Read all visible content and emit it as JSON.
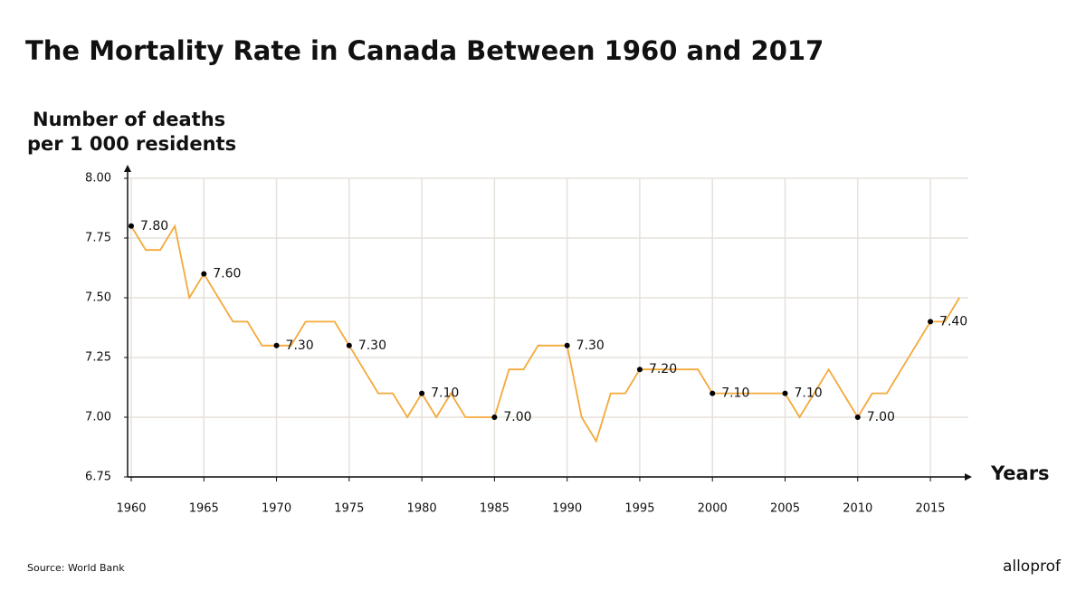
{
  "chart_data": {
    "type": "line",
    "title": "The Mortality Rate in Canada Between 1960 and 2017",
    "y_label": [
      "Number of deaths",
      "per 1 000 residents"
    ],
    "x_label": "Years",
    "source": "Source: World Bank",
    "logo": "alloprof",
    "x": [
      1960,
      1961,
      1962,
      1963,
      1964,
      1965,
      1966,
      1967,
      1968,
      1969,
      1970,
      1971,
      1972,
      1973,
      1974,
      1975,
      1976,
      1977,
      1978,
      1979,
      1980,
      1981,
      1982,
      1983,
      1984,
      1985,
      1986,
      1987,
      1988,
      1989,
      1990,
      1991,
      1992,
      1993,
      1994,
      1995,
      1996,
      1997,
      1998,
      1999,
      2000,
      2001,
      2002,
      2003,
      2004,
      2005,
      2006,
      2007,
      2008,
      2009,
      2010,
      2011,
      2012,
      2013,
      2014,
      2015,
      2016,
      2017
    ],
    "series": [
      {
        "color": "#f4a93a",
        "values": [
          7.8,
          7.7,
          7.7,
          7.8,
          7.5,
          7.6,
          7.5,
          7.4,
          7.4,
          7.3,
          7.3,
          7.3,
          7.4,
          7.4,
          7.4,
          7.3,
          7.2,
          7.1,
          7.1,
          7.0,
          7.1,
          7.0,
          7.1,
          7.0,
          7.0,
          7.0,
          7.2,
          7.2,
          7.3,
          7.3,
          7.3,
          7.0,
          6.9,
          7.1,
          7.1,
          7.2,
          7.2,
          7.2,
          7.2,
          7.2,
          7.1,
          7.1,
          7.1,
          7.1,
          7.1,
          7.1,
          7.0,
          7.1,
          7.2,
          7.1,
          7.0,
          7.1,
          7.1,
          7.2,
          7.3,
          7.4,
          7.4,
          7.5
        ],
        "value_labels": [
          "7.80",
          null,
          null,
          null,
          null,
          "7.60",
          null,
          null,
          null,
          null,
          "7.30",
          null,
          null,
          null,
          null,
          "7.30",
          null,
          null,
          null,
          null,
          "7.10",
          null,
          null,
          null,
          null,
          "7.00",
          null,
          null,
          null,
          null,
          "7.30",
          null,
          null,
          null,
          null,
          "7.20",
          null,
          null,
          null,
          null,
          "7.10",
          null,
          null,
          null,
          null,
          "7.10",
          null,
          null,
          null,
          null,
          "7.00",
          null,
          null,
          null,
          null,
          "7.40",
          null,
          null
        ]
      }
    ],
    "xlim": [
      1960,
      2017.8
    ],
    "ylim": [
      6.75,
      8.0
    ],
    "xticks": [
      1960,
      1965,
      1970,
      1975,
      1980,
      1985,
      1990,
      1995,
      2000,
      2005,
      2010,
      2015
    ],
    "yticks": [
      {
        "value": 6.75,
        "label": "6.75"
      },
      {
        "value": 7.0,
        "label": "7.00"
      },
      {
        "value": 7.25,
        "label": "7.25"
      },
      {
        "value": 7.5,
        "label": "7.50"
      },
      {
        "value": 7.75,
        "label": "7.75"
      },
      {
        "value": 8.0,
        "label": "8.00"
      }
    ],
    "grid": true
  }
}
